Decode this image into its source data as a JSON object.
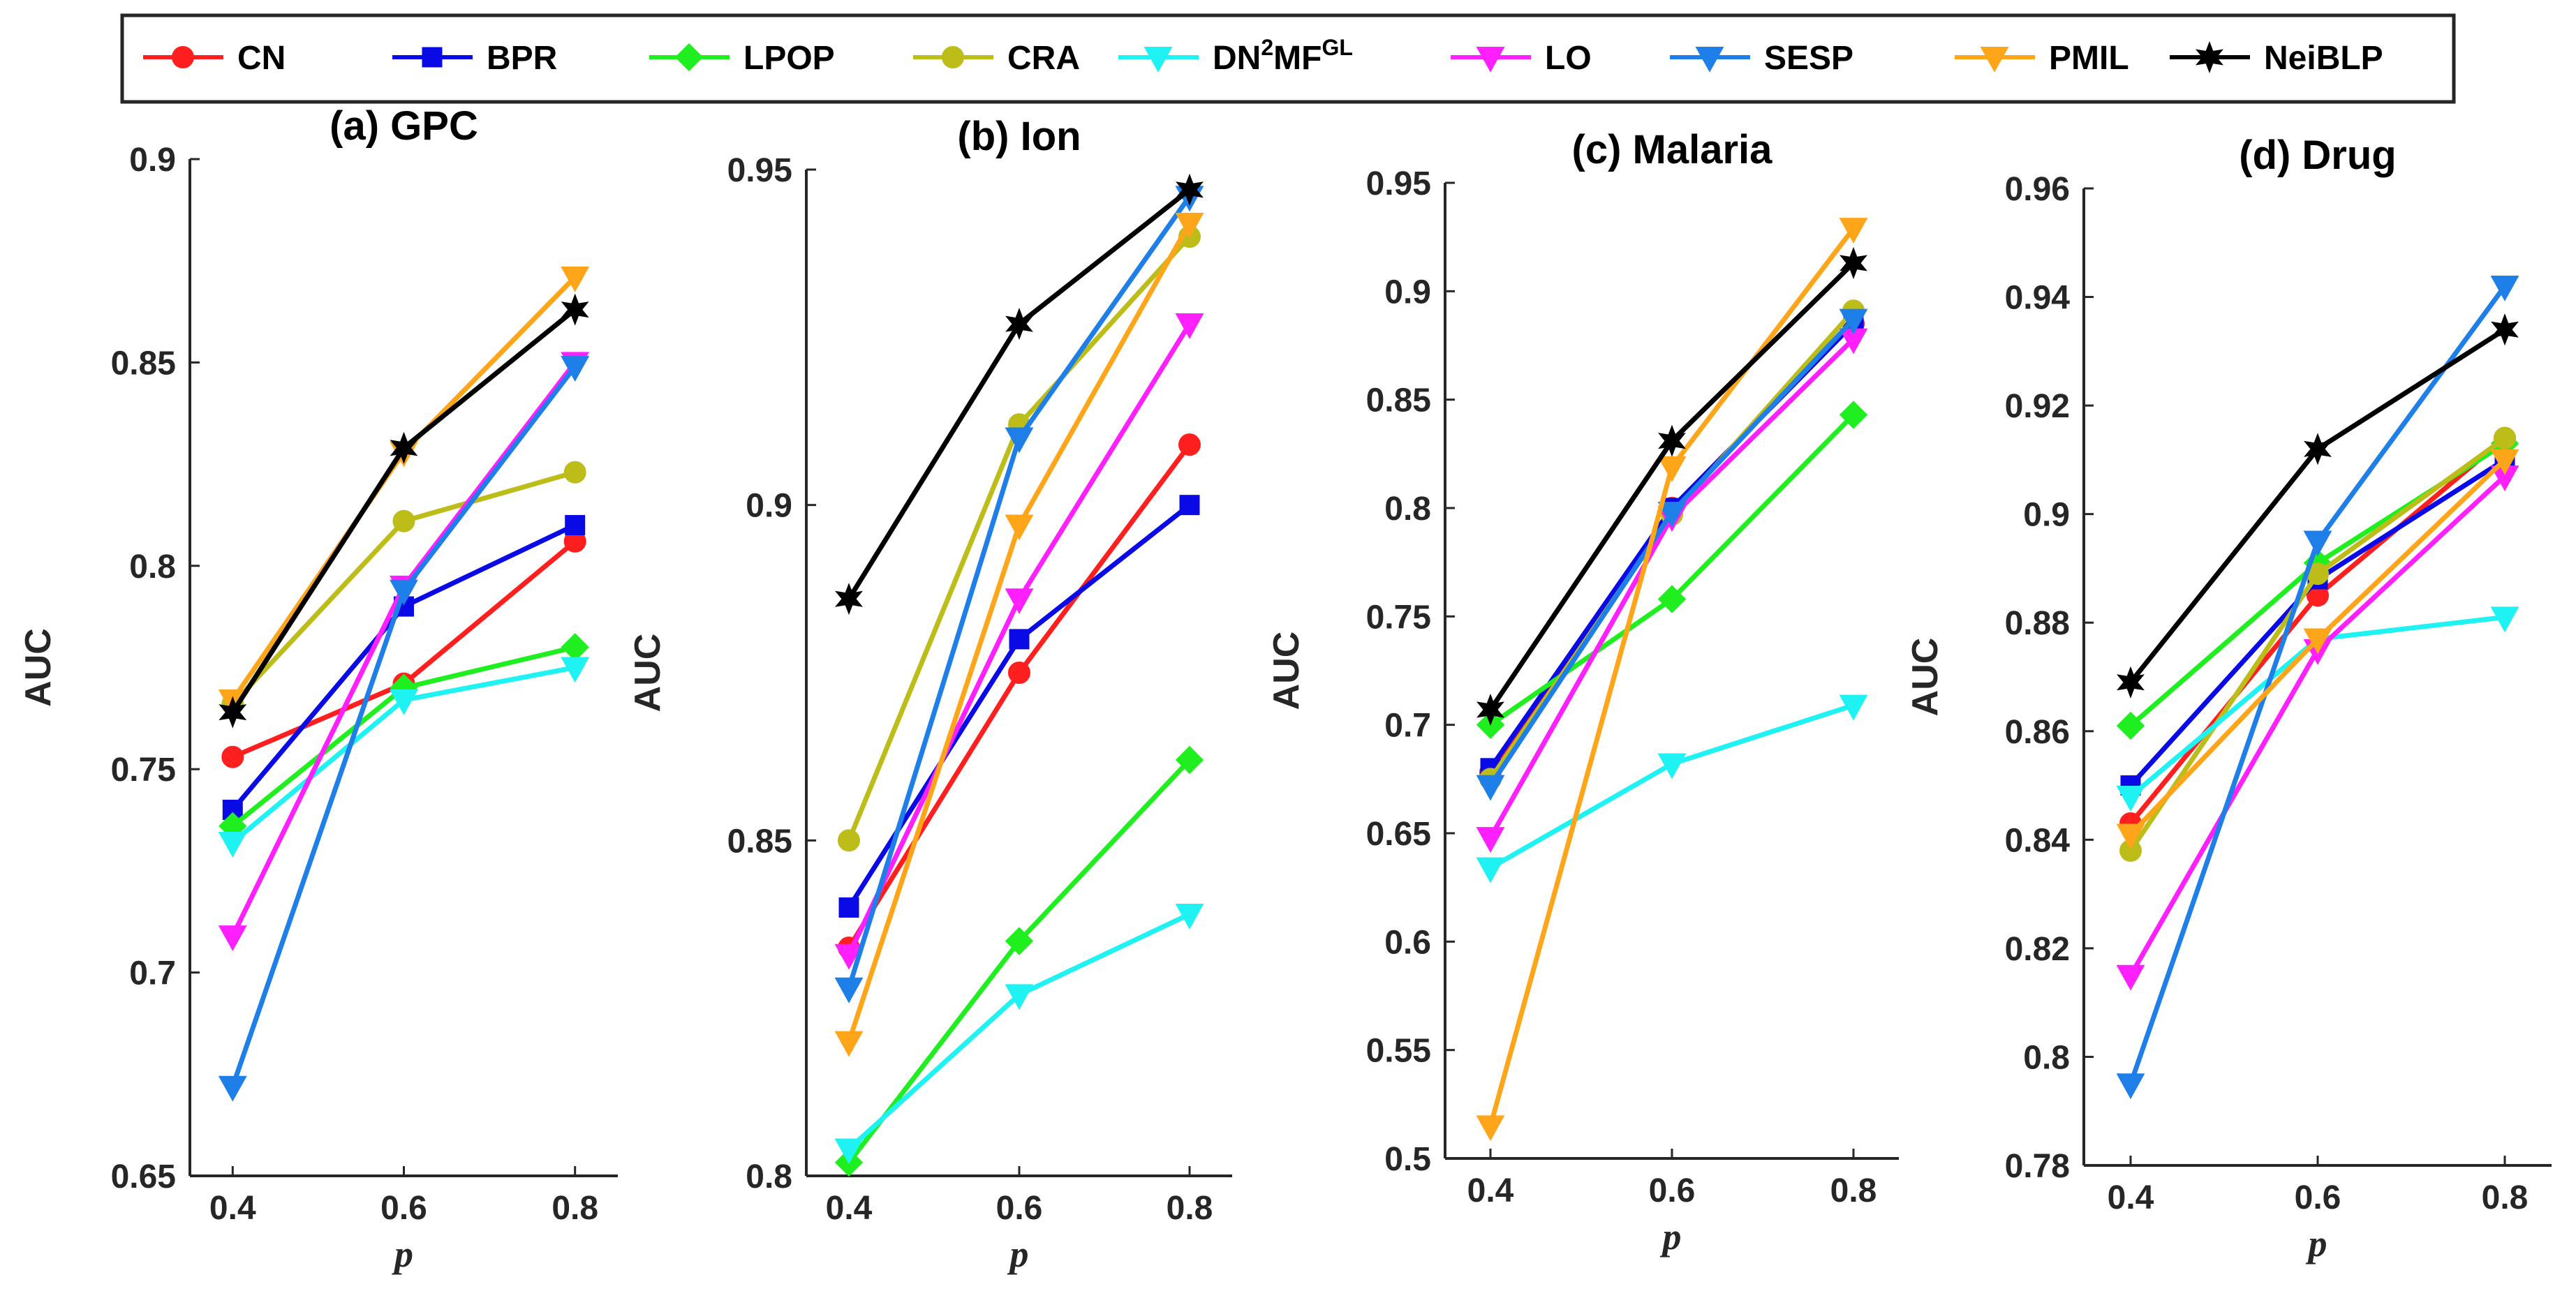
{
  "legend": [
    {
      "name": "CN",
      "color": "#ff1f1f",
      "marker": "circle"
    },
    {
      "name": "BPR",
      "color": "#0a0ae6",
      "marker": "square"
    },
    {
      "name": "LPOP",
      "color": "#1fef1f",
      "marker": "diamond"
    },
    {
      "name": "CRA",
      "color": "#bdbd1a",
      "marker": "circle"
    },
    {
      "name": "DN",
      "sup1": "2",
      "name_mid": "MF",
      "sup2": "GL",
      "color": "#1ef2f2",
      "marker": "triangle-down"
    },
    {
      "name": "LO",
      "color": "#ff1fff",
      "marker": "triangle-down"
    },
    {
      "name": "SESP",
      "color": "#1f7fe8",
      "marker": "triangle-down"
    },
    {
      "name": "PMIL",
      "color": "#ffa51a",
      "marker": "triangle-down"
    },
    {
      "name": "NeiBLP",
      "color": "#000000",
      "marker": "hexagram"
    }
  ],
  "chart_data": [
    {
      "type": "line",
      "title": "(a) GPC",
      "xlabel": "p",
      "ylabel": "AUC",
      "x": [
        0.4,
        0.6,
        0.8
      ],
      "xticks": [
        "0.4",
        "0.6",
        "0.8"
      ],
      "ylim": [
        0.65,
        0.9
      ],
      "yticks": [
        "0.65",
        "0.7",
        "0.75",
        "0.8",
        "0.85",
        "0.9"
      ],
      "series": [
        {
          "name": "CN",
          "values": [
            0.753,
            0.771,
            0.806
          ]
        },
        {
          "name": "BPR",
          "values": [
            0.74,
            0.79,
            0.81
          ]
        },
        {
          "name": "LPOP",
          "values": [
            0.736,
            0.77,
            0.78
          ]
        },
        {
          "name": "CRA",
          "values": [
            0.766,
            0.811,
            0.823
          ]
        },
        {
          "name": "DN2MFGL",
          "values": [
            0.732,
            0.767,
            0.775
          ]
        },
        {
          "name": "LO",
          "values": [
            0.709,
            0.795,
            0.85
          ]
        },
        {
          "name": "SESP",
          "values": [
            0.672,
            0.794,
            0.849
          ]
        },
        {
          "name": "PMIL",
          "values": [
            0.767,
            0.828,
            0.871
          ]
        },
        {
          "name": "NeiBLP",
          "values": [
            0.764,
            0.829,
            0.863
          ]
        }
      ]
    },
    {
      "type": "line",
      "title": "(b) Ion",
      "xlabel": "p",
      "ylabel": "AUC",
      "x": [
        0.4,
        0.6,
        0.8
      ],
      "xticks": [
        "0.4",
        "0.6",
        "0.8"
      ],
      "ylim": [
        0.8,
        0.95
      ],
      "yticks": [
        "0.8",
        "0.85",
        "0.9",
        "0.95"
      ],
      "series": [
        {
          "name": "CN",
          "values": [
            0.834,
            0.875,
            0.909
          ]
        },
        {
          "name": "BPR",
          "values": [
            0.84,
            0.88,
            0.9
          ]
        },
        {
          "name": "LPOP",
          "values": [
            0.802,
            0.835,
            0.862
          ]
        },
        {
          "name": "CRA",
          "values": [
            0.85,
            0.912,
            0.94
          ]
        },
        {
          "name": "DN2MFGL",
          "values": [
            0.804,
            0.827,
            0.839
          ]
        },
        {
          "name": "LO",
          "values": [
            0.833,
            0.886,
            0.927
          ]
        },
        {
          "name": "SESP",
          "values": [
            0.828,
            0.91,
            0.946
          ]
        },
        {
          "name": "PMIL",
          "values": [
            0.82,
            0.897,
            0.942
          ]
        },
        {
          "name": "NeiBLP",
          "values": [
            0.886,
            0.927,
            0.947
          ]
        }
      ]
    },
    {
      "type": "line",
      "title": "(c) Malaria",
      "xlabel": "p",
      "ylabel": "AUC",
      "x": [
        0.4,
        0.6,
        0.8
      ],
      "xticks": [
        "0.4",
        "0.6",
        "0.8"
      ],
      "ylim": [
        0.5,
        0.95
      ],
      "yticks": [
        "0.5",
        "0.55",
        "0.6",
        "0.65",
        "0.7",
        "0.75",
        "0.8",
        "0.85",
        "0.9",
        "0.95"
      ],
      "series": [
        {
          "name": "CN",
          "values": [
            0.678,
            0.8,
            0.885
          ]
        },
        {
          "name": "BPR",
          "values": [
            0.68,
            0.8,
            0.885
          ]
        },
        {
          "name": "LPOP",
          "values": [
            0.7,
            0.758,
            0.843
          ]
        },
        {
          "name": "CRA",
          "values": [
            0.675,
            0.797,
            0.891
          ]
        },
        {
          "name": "DN2MFGL",
          "values": [
            0.634,
            0.682,
            0.709
          ]
        },
        {
          "name": "LO",
          "values": [
            0.648,
            0.796,
            0.878
          ]
        },
        {
          "name": "SESP",
          "values": [
            0.672,
            0.798,
            0.887
          ]
        },
        {
          "name": "PMIL",
          "values": [
            0.515,
            0.819,
            0.929
          ]
        },
        {
          "name": "NeiBLP",
          "values": [
            0.707,
            0.831,
            0.913
          ]
        }
      ]
    },
    {
      "type": "line",
      "title": "(d) Drug",
      "xlabel": "p",
      "ylabel": "AUC",
      "x": [
        0.4,
        0.6,
        0.8
      ],
      "xticks": [
        "0.4",
        "0.6",
        "0.8"
      ],
      "ylim": [
        0.78,
        0.96
      ],
      "yticks": [
        "0.78",
        "0.8",
        "0.82",
        "0.84",
        "0.86",
        "0.88",
        "0.9",
        "0.92",
        "0.94",
        "0.96"
      ],
      "series": [
        {
          "name": "CN",
          "values": [
            0.843,
            0.885,
            0.914
          ]
        },
        {
          "name": "BPR",
          "values": [
            0.85,
            0.888,
            0.91
          ]
        },
        {
          "name": "LPOP",
          "values": [
            0.861,
            0.891,
            0.913
          ]
        },
        {
          "name": "CRA",
          "values": [
            0.838,
            0.889,
            0.914
          ]
        },
        {
          "name": "DN2MFGL",
          "values": [
            0.848,
            0.877,
            0.881
          ]
        },
        {
          "name": "LO",
          "values": [
            0.815,
            0.875,
            0.907
          ]
        },
        {
          "name": "SESP",
          "values": [
            0.795,
            0.895,
            0.942
          ]
        },
        {
          "name": "PMIL",
          "values": [
            0.841,
            0.877,
            0.91
          ]
        },
        {
          "name": "NeiBLP",
          "values": [
            0.869,
            0.912,
            0.934
          ]
        }
      ]
    }
  ]
}
